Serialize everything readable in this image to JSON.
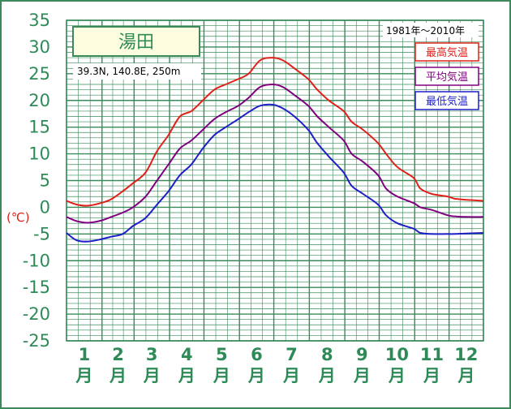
{
  "chart_data": {
    "type": "line",
    "title": "湯田",
    "location": "39.3N,  140.8E,  250m",
    "period": "1981年〜2010年",
    "y_unit": "(℃)",
    "ylim": [
      -25,
      35
    ],
    "y_ticks": [
      35,
      30,
      25,
      20,
      15,
      10,
      5,
      0,
      -5,
      -10,
      -15,
      -20,
      -25
    ],
    "y_tick_labels": [
      "35",
      "30",
      "25",
      "20",
      "15",
      "10",
      "5",
      "0",
      "-5",
      "-10",
      "-15",
      "-20",
      "-25"
    ],
    "month_numbers": [
      "1",
      "2",
      "3",
      "4",
      "5",
      "6",
      "7",
      "8",
      "9",
      "10",
      "11",
      "12"
    ],
    "month_suffix": "月",
    "legend_position": "top-right",
    "grid": true,
    "x_day_range": [
      1,
      365
    ],
    "series": [
      {
        "name": "最高気温",
        "color": "#e0201a",
        "x": [
          1,
          10,
          20,
          31,
          40,
          50,
          59,
          70,
          80,
          90,
          100,
          110,
          120,
          130,
          140,
          151,
          160,
          170,
          181,
          190,
          200,
          212,
          220,
          230,
          243,
          250,
          260,
          273,
          280,
          290,
          304,
          310,
          320,
          334,
          340,
          350,
          365
        ],
        "values": [
          1.2,
          0.5,
          0.3,
          0.8,
          1.5,
          3.0,
          4.5,
          6.5,
          10.5,
          13.5,
          17.0,
          18.0,
          20.0,
          22.0,
          23.0,
          24.0,
          25.0,
          27.5,
          28.0,
          27.5,
          26.0,
          24.0,
          22.0,
          20.0,
          18.0,
          16.0,
          14.5,
          12.0,
          10.0,
          7.5,
          5.5,
          3.5,
          2.5,
          2.0,
          1.6,
          1.4,
          1.2
        ]
      },
      {
        "name": "平均気温",
        "color": "#800080",
        "x": [
          1,
          10,
          20,
          31,
          40,
          50,
          59,
          70,
          80,
          90,
          100,
          110,
          120,
          130,
          140,
          151,
          160,
          170,
          181,
          190,
          200,
          212,
          220,
          230,
          243,
          250,
          260,
          273,
          280,
          290,
          304,
          310,
          320,
          334,
          340,
          350,
          365
        ],
        "values": [
          -1.8,
          -2.6,
          -2.9,
          -2.5,
          -1.8,
          -1.0,
          0.0,
          2.0,
          5.0,
          8.0,
          11.0,
          12.5,
          14.5,
          16.5,
          17.8,
          19.0,
          20.5,
          22.5,
          23.0,
          22.5,
          21.0,
          19.0,
          17.0,
          15.0,
          12.5,
          10.0,
          8.5,
          6.0,
          3.5,
          2.0,
          0.8,
          0.0,
          -0.5,
          -1.5,
          -1.7,
          -1.8,
          -1.8
        ]
      },
      {
        "name": "最低気温",
        "color": "#1f1fc8",
        "x": [
          1,
          10,
          20,
          31,
          40,
          50,
          59,
          70,
          80,
          90,
          100,
          110,
          120,
          130,
          140,
          151,
          160,
          170,
          181,
          190,
          200,
          212,
          220,
          230,
          243,
          250,
          260,
          273,
          280,
          290,
          304,
          310,
          320,
          334,
          340,
          350,
          365
        ],
        "values": [
          -4.8,
          -6.2,
          -6.4,
          -6.0,
          -5.5,
          -5.0,
          -3.5,
          -2.0,
          0.5,
          3.0,
          6.0,
          8.0,
          11.0,
          13.5,
          15.0,
          16.5,
          17.8,
          19.0,
          19.2,
          18.5,
          17.0,
          14.5,
          12.0,
          9.5,
          6.5,
          4.0,
          2.5,
          0.5,
          -1.5,
          -3.0,
          -4.0,
          -4.8,
          -5.0,
          -5.0,
          -5.0,
          -4.9,
          -4.8
        ]
      }
    ]
  }
}
